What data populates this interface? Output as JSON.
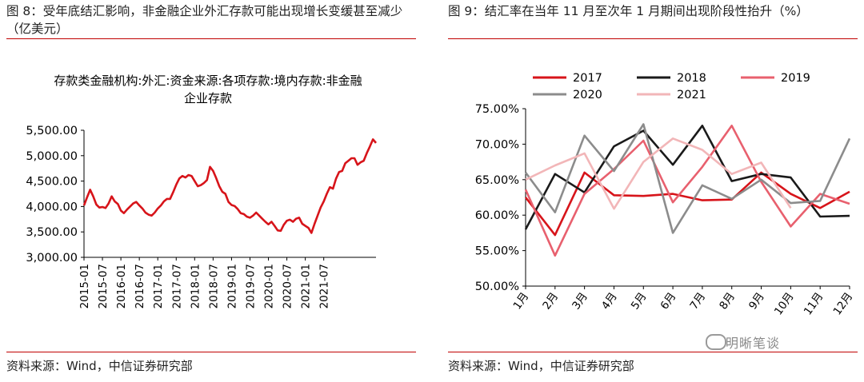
{
  "left": {
    "figure_title": "图 8：受年底结汇影响，非金融企业外汇存款可能出现增长变缓甚至减少（亿美元）",
    "chart_title": "存款类金融机构:外汇:资金来源:各项存款:境内存款:非金融企业存款",
    "source": "资料来源：Wind，中信证券研究部"
  },
  "right": {
    "figure_title": "图 9：结汇率在当年 11 月至次年 1 月期间出现阶段性抬升（%）",
    "source": "资料来源：Wind，中信证券研究部",
    "watermark": "明晰笔谈"
  },
  "colors": {
    "rule": "#c00000",
    "deposit_line": "#d7141a",
    "s2017": "#d7141a",
    "s2018": "#1a1a1a",
    "s2019": "#e8606e",
    "s2020": "#8c8c8c",
    "s2021": "#f2b6b8"
  },
  "chart_data": [
    {
      "type": "line",
      "title": "存款类金融机构:外汇:资金来源:各项存款:境内存款:非金融企业存款",
      "ylim": [
        3000,
        5500
      ],
      "y_ticks": [
        "5,500.00",
        "5,000.00",
        "4,500.00",
        "4,000.00",
        "3,500.00",
        "3,000.00"
      ],
      "x_ticks": [
        "2015-01",
        "2015-07",
        "2016-01",
        "2016-07",
        "2017-01",
        "2017-07",
        "2018-01",
        "2018-07",
        "2019-01",
        "2019-07",
        "2020-01",
        "2020-07",
        "2021-01",
        "2021-07"
      ],
      "start": "2015-01",
      "values": [
        4020,
        4180,
        4330,
        4200,
        4040,
        3980,
        3990,
        3970,
        4060,
        4200,
        4100,
        4050,
        3920,
        3870,
        3940,
        4000,
        4060,
        4090,
        4020,
        3960,
        3880,
        3840,
        3820,
        3880,
        3960,
        4020,
        4100,
        4150,
        4150,
        4280,
        4430,
        4550,
        4600,
        4570,
        4620,
        4600,
        4500,
        4400,
        4420,
        4460,
        4520,
        4780,
        4700,
        4560,
        4400,
        4290,
        4250,
        4090,
        4030,
        4010,
        3950,
        3870,
        3850,
        3800,
        3780,
        3820,
        3880,
        3820,
        3760,
        3700,
        3650,
        3700,
        3620,
        3530,
        3520,
        3640,
        3720,
        3740,
        3700,
        3760,
        3780,
        3660,
        3620,
        3580,
        3480,
        3660,
        3820,
        3980,
        4100,
        4250,
        4380,
        4350,
        4550,
        4680,
        4700,
        4850,
        4900,
        4950,
        4950,
        4820,
        4870,
        4900,
        5050,
        5180,
        5320,
        5250
      ]
    },
    {
      "type": "line",
      "categories": [
        "1月",
        "2月",
        "3月",
        "4月",
        "5月",
        "6月",
        "7月",
        "8月",
        "9月",
        "10月",
        "11月",
        "12月"
      ],
      "ylim": [
        50,
        75
      ],
      "y_ticks": [
        "75.00%",
        "70.00%",
        "65.00%",
        "60.00%",
        "55.00%",
        "50.00%"
      ],
      "series": [
        {
          "name": "2017",
          "values": [
            62.5,
            57.2,
            66.0,
            62.8,
            62.7,
            63.0,
            62.1,
            62.2,
            66.0,
            63.0,
            61.0,
            63.3
          ]
        },
        {
          "name": "2018",
          "values": [
            58.0,
            65.8,
            63.2,
            69.7,
            71.9,
            67.1,
            72.6,
            64.8,
            65.8,
            65.3,
            59.8,
            59.9
          ]
        },
        {
          "name": "2019",
          "values": [
            63.6,
            54.3,
            63.0,
            66.5,
            70.5,
            61.8,
            66.8,
            72.6,
            64.7,
            58.4,
            63.0,
            61.6
          ]
        },
        {
          "name": "2020",
          "values": [
            66.0,
            60.4,
            71.2,
            66.2,
            72.8,
            57.5,
            64.2,
            62.3,
            65.0,
            61.7,
            62.0,
            70.8
          ]
        },
        {
          "name": "2021",
          "values": [
            65.0,
            67.0,
            68.7,
            60.9,
            67.5,
            70.8,
            69.2,
            65.8,
            67.4,
            61.0,
            null,
            null
          ]
        }
      ]
    }
  ]
}
